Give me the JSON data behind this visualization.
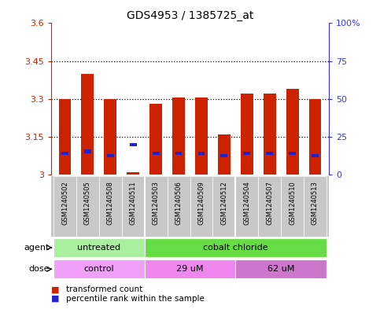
{
  "title": "GDS4953 / 1385725_at",
  "samples": [
    "GSM1240502",
    "GSM1240505",
    "GSM1240508",
    "GSM1240511",
    "GSM1240503",
    "GSM1240506",
    "GSM1240509",
    "GSM1240512",
    "GSM1240504",
    "GSM1240507",
    "GSM1240510",
    "GSM1240513"
  ],
  "transformed_count": [
    3.3,
    3.4,
    3.3,
    3.01,
    3.28,
    3.305,
    3.305,
    3.16,
    3.32,
    3.32,
    3.34,
    3.3
  ],
  "percentile_rank_val": [
    3.083,
    3.092,
    3.075,
    3.118,
    3.083,
    3.083,
    3.083,
    3.075,
    3.083,
    3.083,
    3.083,
    3.075
  ],
  "ylim_left": [
    3.0,
    3.6
  ],
  "ylim_right": [
    0,
    100
  ],
  "yticks_left": [
    3.0,
    3.15,
    3.3,
    3.45,
    3.6
  ],
  "ytick_labels_left": [
    "3",
    "3.15",
    "3.3",
    "3.45",
    "3.6"
  ],
  "ytick_labels_right": [
    "0",
    "25",
    "50",
    "75",
    "100%"
  ],
  "yticks_right": [
    0,
    25,
    50,
    75,
    100
  ],
  "hlines": [
    3.15,
    3.3,
    3.45
  ],
  "bar_bottom": 3.0,
  "bar_color": "#CC2200",
  "percentile_color": "#2222CC",
  "left_axis_color": "#CC2200",
  "right_axis_color": "#3333FF",
  "plot_bg": "#FFFFFF",
  "label_bg": "#C8C8C8",
  "agent_groups": [
    {
      "label": "untreated",
      "start": 0,
      "end": 4,
      "color": "#AAEEA0"
    },
    {
      "label": "cobalt chloride",
      "start": 4,
      "end": 12,
      "color": "#66DD44"
    }
  ],
  "dose_groups": [
    {
      "label": "control",
      "start": 0,
      "end": 4,
      "color": "#F0A0F8"
    },
    {
      "label": "29 uM",
      "start": 4,
      "end": 8,
      "color": "#EE88EE"
    },
    {
      "label": "62 uM",
      "start": 8,
      "end": 12,
      "color": "#CC77CC"
    }
  ],
  "agent_label": "agent",
  "dose_label": "dose",
  "legend_red_label": "transformed count",
  "legend_blue_label": "percentile rank within the sample",
  "n_samples": 12,
  "group_dividers": [
    3.5,
    7.5
  ]
}
